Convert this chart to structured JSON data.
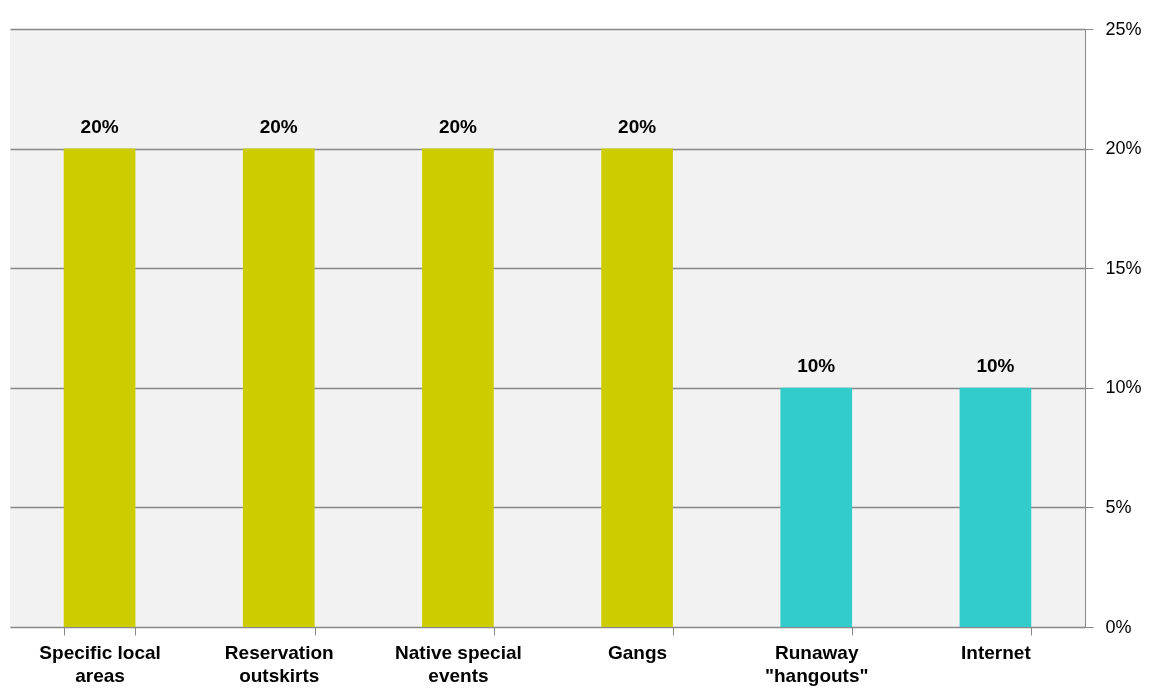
{
  "chart_data": {
    "type": "bar",
    "categories": [
      "Specific local areas",
      "Reservation outskirts",
      "Native special events",
      "Gangs",
      "Runaway \"hangouts\"",
      "Internet"
    ],
    "values": [
      20,
      20,
      20,
      20,
      10,
      10
    ],
    "colors": [
      "#cccc00",
      "#cccc00",
      "#cccc00",
      "#cccc00",
      "#33cccc",
      "#33cccc"
    ],
    "value_labels": [
      "20%",
      "20%",
      "20%",
      "20%",
      "10%",
      "10%"
    ],
    "ylim": [
      0,
      25
    ],
    "yticks": [
      {
        "value": 0,
        "label": "0%"
      },
      {
        "value": 5,
        "label": "5%"
      },
      {
        "value": 10,
        "label": "10%"
      },
      {
        "value": 15,
        "label": "15%"
      },
      {
        "value": 20,
        "label": "20%"
      },
      {
        "value": 25,
        "label": "25%"
      }
    ],
    "grid": "y"
  }
}
